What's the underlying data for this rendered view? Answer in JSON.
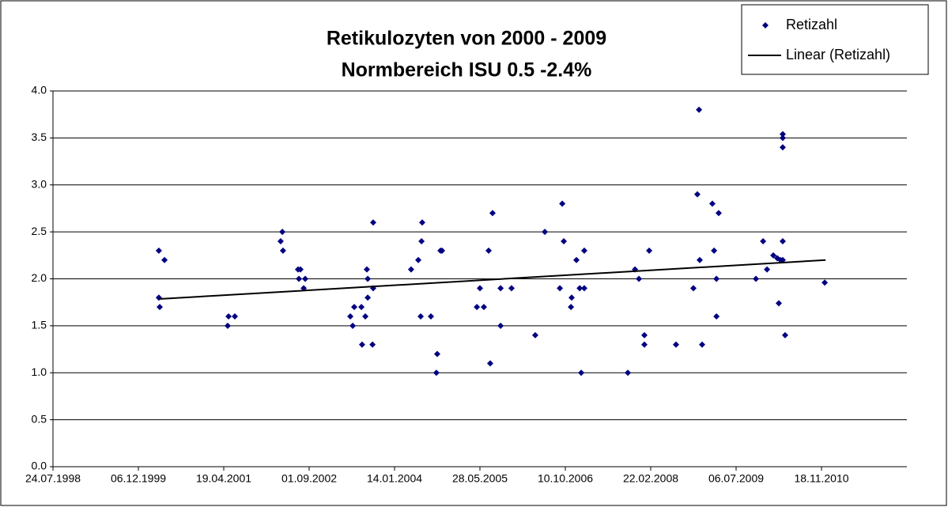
{
  "chart_data": {
    "type": "scatter",
    "title": "Retikulozyten von 2000 - 2009",
    "subtitle": "Normbereich ISU 0.5 -2.4%",
    "xlim": [
      36000,
      41000
    ],
    "xticks": [
      {
        "value": 36000,
        "label": "24.07.1998"
      },
      {
        "value": 36500,
        "label": "06.12.1999"
      },
      {
        "value": 37000,
        "label": "19.04.2001"
      },
      {
        "value": 37500,
        "label": "01.09.2002"
      },
      {
        "value": 38000,
        "label": "14.01.2004"
      },
      {
        "value": 38500,
        "label": "28.05.2005"
      },
      {
        "value": 39000,
        "label": "10.10.2006"
      },
      {
        "value": 39500,
        "label": "22.02.2008"
      },
      {
        "value": 40000,
        "label": "06.07.2009"
      },
      {
        "value": 40500,
        "label": "18.11.2010"
      }
    ],
    "ylim": [
      0,
      4
    ],
    "yticks": [
      {
        "value": 0,
        "label": "0.0"
      },
      0.5,
      {
        "value": 1,
        "label": "1.0"
      },
      1.5,
      {
        "value": 2,
        "label": "2.0"
      },
      2.5,
      {
        "value": 3,
        "label": "3.0"
      },
      3.5,
      {
        "value": 4,
        "label": "4.0"
      }
    ],
    "grid": true,
    "legend": "top-right",
    "series": [
      {
        "name": "Retizahl",
        "color": "#000080",
        "x": [
          36620,
          36620,
          36625,
          36653,
          37023,
          37028,
          37065,
          37333,
          37343,
          37347,
          37435,
          37449,
          37440,
          37477,
          37468,
          37741,
          37755,
          37764,
          37806,
          37810,
          37829,
          37843,
          37838,
          37843,
          37871,
          37875,
          37875,
          38097,
          38139,
          38153,
          38158,
          38162,
          38213,
          38250,
          38245,
          38269,
          38278,
          38482,
          38500,
          38523,
          38551,
          38560,
          38574,
          38621,
          38621,
          38685,
          38824,
          38880,
          38968,
          38982,
          38991,
          39033,
          39037,
          39065,
          39084,
          39093,
          39111,
          39111,
          39366,
          39408,
          39431,
          39463,
          39463,
          39491,
          39648,
          39750,
          39773,
          39783,
          39787,
          39801,
          39861,
          39871,
          39885,
          39885,
          39898,
          40116,
          40158,
          40181,
          40218,
          40241,
          40250,
          40260,
          40273,
          40273,
          40273,
          40273,
          40273,
          40287,
          40519
        ],
        "values": [
          2.3,
          1.8,
          1.7,
          2.2,
          1.5,
          1.6,
          1.6,
          2.4,
          2.5,
          2.3,
          2.1,
          2.1,
          2.0,
          2.0,
          1.9,
          1.6,
          1.5,
          1.7,
          1.7,
          1.3,
          1.6,
          1.8,
          2.1,
          2.0,
          1.3,
          1.9,
          2.6,
          2.1,
          2.2,
          1.6,
          2.4,
          2.6,
          1.6,
          1.2,
          1.0,
          2.3,
          2.3,
          1.7,
          1.9,
          1.7,
          2.3,
          1.1,
          2.7,
          1.9,
          1.5,
          1.9,
          1.4,
          2.5,
          1.9,
          2.8,
          2.4,
          1.7,
          1.8,
          2.2,
          1.9,
          1.0,
          1.9,
          2.3,
          1.0,
          2.1,
          2.0,
          1.4,
          1.3,
          2.3,
          1.3,
          1.9,
          2.9,
          3.8,
          2.2,
          1.3,
          2.8,
          2.3,
          2.0,
          1.6,
          2.7,
          2.0,
          2.4,
          2.1,
          2.25,
          2.22,
          1.74,
          2.2,
          2.4,
          2.2,
          3.54,
          3.5,
          3.4,
          1.4,
          1.96
        ]
      },
      {
        "name": "Linear (Retizahl)",
        "color": "#000000",
        "type": "line",
        "x": [
          36620,
          40524
        ],
        "values": [
          1.785,
          2.2
        ]
      }
    ]
  }
}
